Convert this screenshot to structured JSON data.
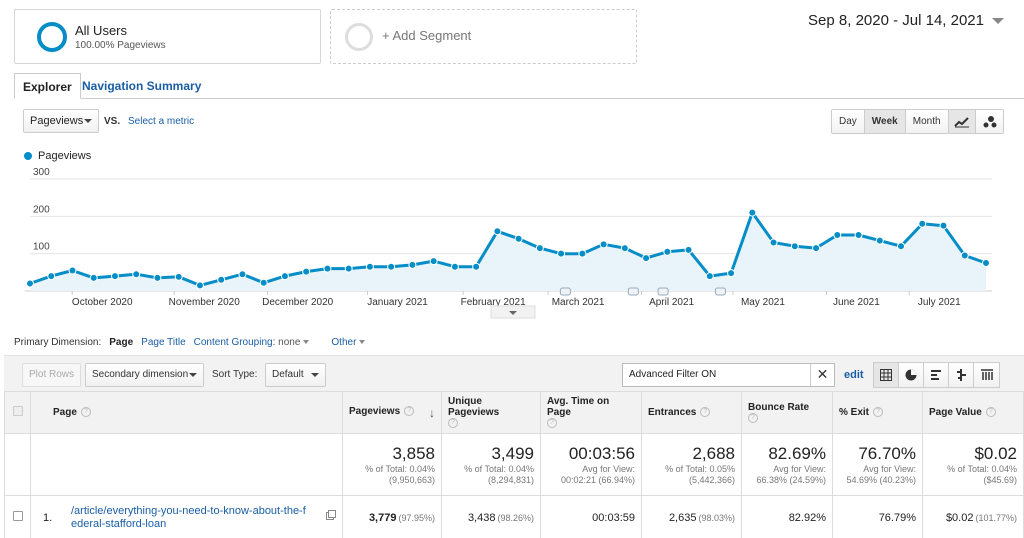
{
  "segments": {
    "active": {
      "title": "All Users",
      "subtitle": "100.00% Pageviews"
    },
    "add_label": "+ Add Segment"
  },
  "date_range": "Sep 8, 2020 - Jul 14, 2021",
  "tabs": [
    "Explorer",
    "Navigation Summary"
  ],
  "metric": {
    "selected": "Pageviews",
    "vs": "VS.",
    "select_metric": "Select a metric"
  },
  "period_buttons": [
    "Day",
    "Week",
    "Month"
  ],
  "period_active": "Week",
  "accent_color": "#058dc7",
  "chart_data": {
    "type": "area",
    "series": [
      {
        "name": "Pageviews",
        "values": [
          20,
          40,
          55,
          35,
          40,
          45,
          35,
          38,
          15,
          30,
          45,
          22,
          40,
          52,
          60,
          60,
          65,
          65,
          70,
          80,
          65,
          65,
          160,
          140,
          115,
          100,
          100,
          125,
          115,
          88,
          105,
          110,
          40,
          48,
          210,
          130,
          120,
          115,
          150,
          150,
          135,
          120,
          180,
          175,
          95,
          75
        ]
      }
    ],
    "x": [
      "Sep 8",
      "Sep 15",
      "Sep 22",
      "Sep 29",
      "Oct 6",
      "Oct 13",
      "Oct 20",
      "Oct 27",
      "Nov 3",
      "Nov 10",
      "Nov 17",
      "Nov 24",
      "Dec 1",
      "Dec 8",
      "Dec 15",
      "Dec 22",
      "Dec 29",
      "Jan 5",
      "Jan 12",
      "Jan 19",
      "Jan 26",
      "Feb 2",
      "Feb 9",
      "Feb 16",
      "Feb 23",
      "Mar 2",
      "Mar 9",
      "Mar 16",
      "Mar 23",
      "Mar 30",
      "Apr 6",
      "Apr 13",
      "Apr 20",
      "Apr 27",
      "May 4",
      "May 11",
      "May 18",
      "May 25",
      "Jun 1",
      "Jun 8",
      "Jun 15",
      "Jun 22",
      "Jun 29",
      "Jul 6",
      "Jul 13",
      "Jul 14"
    ],
    "x_tick_labels": [
      "October 2020",
      "November 2020",
      "December 2020",
      "January 2021",
      "February 2021",
      "March 2021",
      "April 2021",
      "May 2021",
      "June 2021",
      "July 2021"
    ],
    "y_tick_labels": [
      "100",
      "200",
      "300"
    ],
    "ylim": [
      0,
      300
    ],
    "grid": true,
    "legend": "top-left"
  },
  "dimensions": {
    "label": "Primary Dimension:",
    "current": "Page",
    "page_title": "Page Title",
    "content_grouping": "Content Grouping:",
    "content_grouping_value": "none",
    "other": "Other"
  },
  "toolbar": {
    "plot_rows": "Plot Rows",
    "secondary_dimension": "Secondary dimension",
    "sort_type_label": "Sort Type:",
    "sort_type": "Default",
    "filter_value": "Advanced Filter ON",
    "edit": "edit"
  },
  "table": {
    "columns": [
      "Page",
      "Pageviews",
      "Unique Pageviews",
      "Avg. Time on Page",
      "Entrances",
      "Bounce Rate",
      "% Exit",
      "Page Value"
    ],
    "totals": [
      {
        "value": "3,858",
        "sub1": "% of Total: 0.04%",
        "sub2": "(9,950,663)"
      },
      {
        "value": "3,499",
        "sub1": "% of Total: 0.04%",
        "sub2": "(8,294,831)"
      },
      {
        "value": "00:03:56",
        "sub1": "Avg for View:",
        "sub2": "00:02:21 (66.94%)"
      },
      {
        "value": "2,688",
        "sub1": "% of Total: 0.05%",
        "sub2": "(5,442,366)"
      },
      {
        "value": "82.69%",
        "sub1": "Avg for View:",
        "sub2": "66.38% (24.59%)"
      },
      {
        "value": "76.70%",
        "sub1": "Avg for View:",
        "sub2": "54.69% (40.23%)"
      },
      {
        "value": "$0.02",
        "sub1": "% of Total: 0.04%",
        "sub2": "($45.69)"
      }
    ],
    "rows": [
      {
        "index": "1.",
        "page_line1": "/article/everything-you-need-to-know-about-the-f",
        "page_line2": "ederal-stafford-loan",
        "pageviews": "3,779",
        "pageviews_pct": "(97.95%)",
        "unique": "3,438",
        "unique_pct": "(98.26%)",
        "avg_time": "00:03:59",
        "entrances": "2,635",
        "entrances_pct": "(98.03%)",
        "bounce": "82.92%",
        "exit": "76.79%",
        "value": "$0.02",
        "value_pct": "(101.77%)"
      }
    ]
  }
}
